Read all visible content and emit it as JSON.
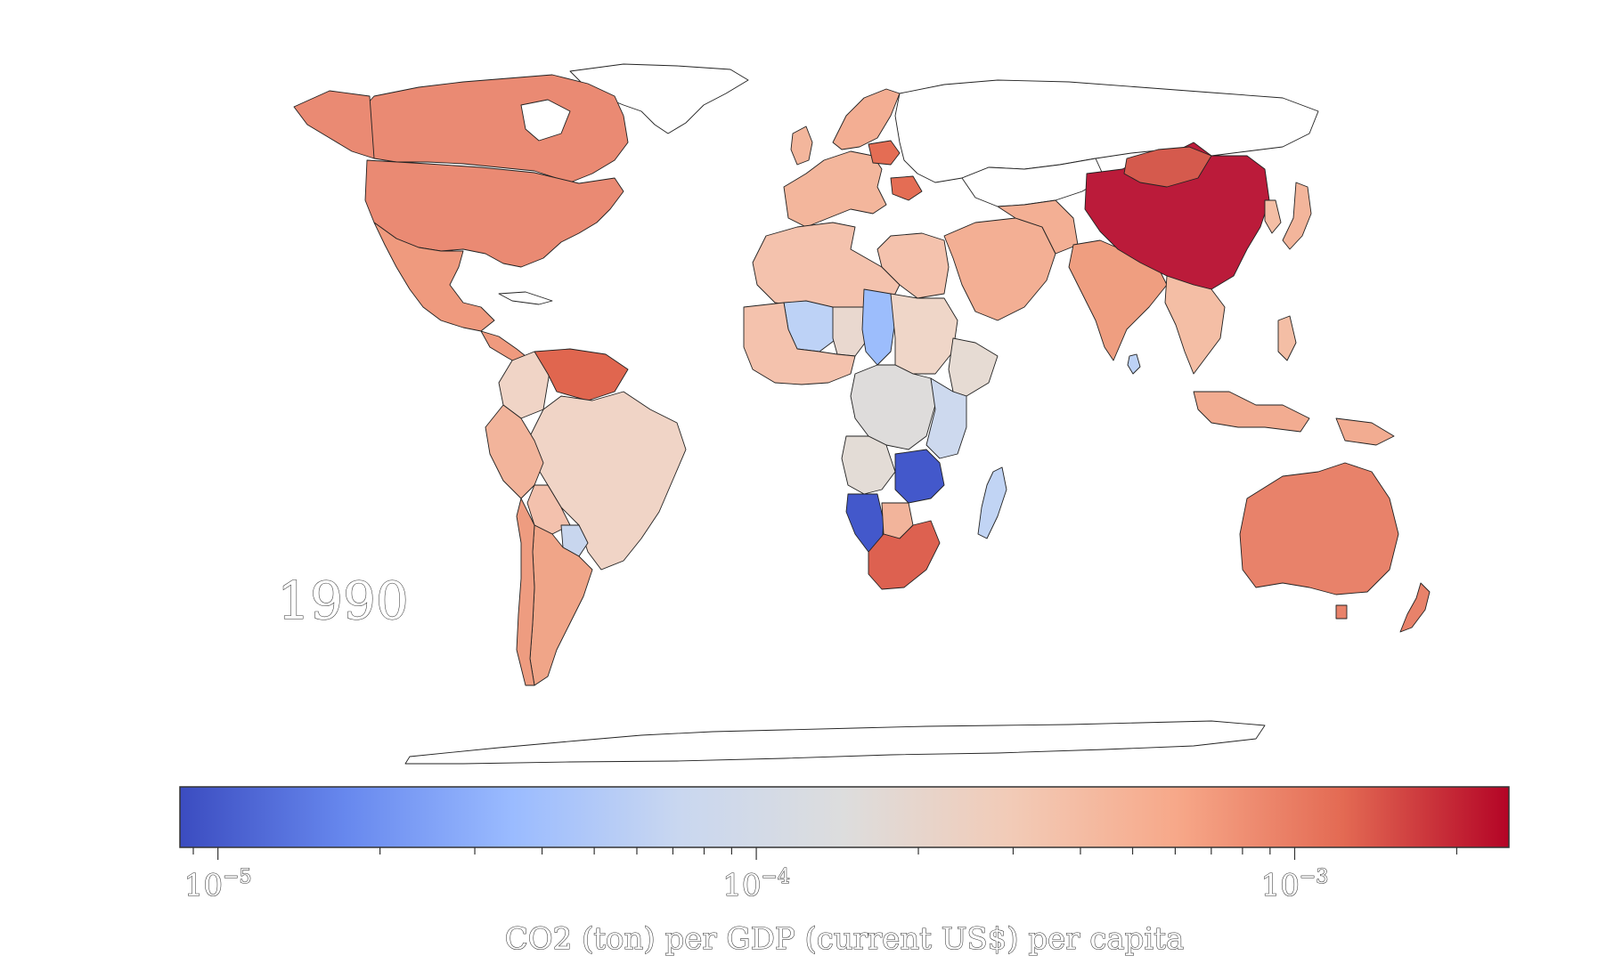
{
  "year_label": "1990",
  "colorbar": {
    "title": "CO2 (ton) per GDP (current US$) per capita",
    "scale": "log",
    "range": [
      8.5e-06,
      0.0025
    ],
    "ticks": [
      {
        "value": 1e-05,
        "base": "10",
        "exp": "−5"
      },
      {
        "value": 0.0001,
        "base": "10",
        "exp": "−4"
      },
      {
        "value": 0.001,
        "base": "10",
        "exp": "−3"
      }
    ],
    "colormap": [
      "#3b4cc0",
      "#6788ee",
      "#9abbff",
      "#c9d7f0",
      "#dddddd",
      "#f2cbb7",
      "#f7a889",
      "#e36a53",
      "#b40426"
    ]
  },
  "colors": {
    "no_data": "#ffffff",
    "border": "#222222",
    "background": "#ffffff"
  },
  "regions": [
    {
      "name": "Canada",
      "color": "#ea8a73"
    },
    {
      "name": "USA",
      "color": "#ea8a73"
    },
    {
      "name": "Mexico",
      "color": "#ef9a7e"
    },
    {
      "name": "Venezuela",
      "color": "#e0664f"
    },
    {
      "name": "Brazil",
      "color": "#f0d4c6"
    },
    {
      "name": "Peru",
      "color": "#f2b49b"
    },
    {
      "name": "Bolivia",
      "color": "#f3c1ad"
    },
    {
      "name": "Paraguay",
      "color": "#c8d6ee"
    },
    {
      "name": "Argentina",
      "color": "#f0a588"
    },
    {
      "name": "Chile",
      "color": "#ee9c80"
    },
    {
      "name": "Europe West",
      "color": "#f3b69c"
    },
    {
      "name": "Poland",
      "color": "#e46d54"
    },
    {
      "name": "Scandinavia",
      "color": "#f3ae93"
    },
    {
      "name": "North Africa",
      "color": "#f4c2ad"
    },
    {
      "name": "Mali",
      "color": "#bdd2f6"
    },
    {
      "name": "Niger",
      "color": "#e9d8cf"
    },
    {
      "name": "Chad",
      "color": "#9cbdfc"
    },
    {
      "name": "Sudan",
      "color": "#efd6c8"
    },
    {
      "name": "Ethiopia",
      "color": "#e6dbd3"
    },
    {
      "name": "DR Congo",
      "color": "#dedcdb"
    },
    {
      "name": "Tanzania",
      "color": "#cdd9ee"
    },
    {
      "name": "Angola",
      "color": "#e3dcd6"
    },
    {
      "name": "Namibia",
      "color": "#4358cb"
    },
    {
      "name": "South Africa",
      "color": "#dd6150"
    },
    {
      "name": "Madagascar",
      "color": "#c1d4f4"
    },
    {
      "name": "Middle East",
      "color": "#f3af94"
    },
    {
      "name": "India",
      "color": "#ef9e80"
    },
    {
      "name": "China",
      "color": "#bb1b3a"
    },
    {
      "name": "Mongolia",
      "color": "#d55a4d"
    },
    {
      "name": "Southeast Asia",
      "color": "#f4bea5"
    },
    {
      "name": "Indonesia",
      "color": "#f2ac91"
    },
    {
      "name": "Japan",
      "color": "#f3b59b"
    },
    {
      "name": "Australia",
      "color": "#e8826a"
    },
    {
      "name": "New Zealand",
      "color": "#e8826a"
    }
  ]
}
